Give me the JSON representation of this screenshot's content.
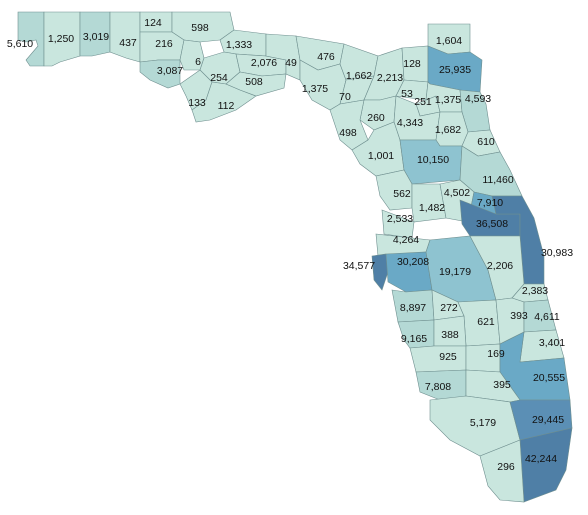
{
  "map": {
    "colors": {
      "c1": "#c9e6de",
      "c2": "#b4d9d5",
      "c3": "#8ec3d0",
      "c4": "#6aa9c6",
      "c5": "#4f7fa6",
      "border": "#6f8f8f"
    },
    "labels": [
      {
        "id": "escambia",
        "text": "5,610"
      },
      {
        "id": "santa-rosa",
        "text": "1,250"
      },
      {
        "id": "okaloosa",
        "text": "3,019"
      },
      {
        "id": "walton",
        "text": "437"
      },
      {
        "id": "holmes",
        "text": "124"
      },
      {
        "id": "jackson",
        "text": "598"
      },
      {
        "id": "washington",
        "text": "216"
      },
      {
        "id": "bay",
        "text": "3,087"
      },
      {
        "id": "calhoun",
        "text": "6"
      },
      {
        "id": "gadsden",
        "text": "1,333"
      },
      {
        "id": "liberty",
        "text": "254"
      },
      {
        "id": "gulf",
        "text": "133"
      },
      {
        "id": "franklin",
        "text": "112"
      },
      {
        "id": "leon",
        "text": "2,076"
      },
      {
        "id": "wakulla",
        "text": "508"
      },
      {
        "id": "jefferson",
        "text": "49"
      },
      {
        "id": "madison",
        "text": "476"
      },
      {
        "id": "taylor",
        "text": "1,375"
      },
      {
        "id": "hamilton",
        "text": "1,662"
      },
      {
        "id": "columbia",
        "text": "2,213"
      },
      {
        "id": "baker",
        "text": "128"
      },
      {
        "id": "nassau",
        "text": "1,604"
      },
      {
        "id": "duval",
        "text": "25,935"
      },
      {
        "id": "union",
        "text": "53"
      },
      {
        "id": "bradford",
        "text": "251"
      },
      {
        "id": "clay",
        "text": "1,375"
      },
      {
        "id": "st-johns",
        "text": "4,593"
      },
      {
        "id": "lafayette",
        "text": "70"
      },
      {
        "id": "suwannee",
        "text": "260"
      },
      {
        "id": "alachua",
        "text": "4,343"
      },
      {
        "id": "dixie",
        "text": "498"
      },
      {
        "id": "putnam",
        "text": "1,682"
      },
      {
        "id": "flagler",
        "text": "610"
      },
      {
        "id": "levy",
        "text": "1,001"
      },
      {
        "id": "marion",
        "text": "10,150"
      },
      {
        "id": "volusia",
        "text": "11,460"
      },
      {
        "id": "lake",
        "text": "4,502"
      },
      {
        "id": "seminole",
        "text": "7,910"
      },
      {
        "id": "citrus",
        "text": "562"
      },
      {
        "id": "sumter",
        "text": "1,482"
      },
      {
        "id": "hernando",
        "text": "2,533"
      },
      {
        "id": "orange",
        "text": "36,508"
      },
      {
        "id": "brevard",
        "text": "30,983"
      },
      {
        "id": "pasco",
        "text": "4,264"
      },
      {
        "id": "pinellas",
        "text": "34,577"
      },
      {
        "id": "hillsborough",
        "text": "30,208"
      },
      {
        "id": "polk",
        "text": "19,179"
      },
      {
        "id": "osceola",
        "text": "2,206"
      },
      {
        "id": "indian-river",
        "text": "2,383"
      },
      {
        "id": "manatee",
        "text": "8,897"
      },
      {
        "id": "hardee",
        "text": "272"
      },
      {
        "id": "highlands",
        "text": "621"
      },
      {
        "id": "okeechobee",
        "text": "393"
      },
      {
        "id": "st-lucie",
        "text": "4,611"
      },
      {
        "id": "sarasota",
        "text": "9,165"
      },
      {
        "id": "desoto",
        "text": "388"
      },
      {
        "id": "martin",
        "text": "3,401"
      },
      {
        "id": "charlotte",
        "text": "925"
      },
      {
        "id": "glades",
        "text": "169"
      },
      {
        "id": "lee",
        "text": "7,808"
      },
      {
        "id": "hendry",
        "text": "395"
      },
      {
        "id": "palm-beach",
        "text": "20,555"
      },
      {
        "id": "collier",
        "text": "5,179"
      },
      {
        "id": "broward",
        "text": "29,445"
      },
      {
        "id": "monroe",
        "text": "296"
      },
      {
        "id": "miami-dade",
        "text": "42,244"
      }
    ]
  }
}
